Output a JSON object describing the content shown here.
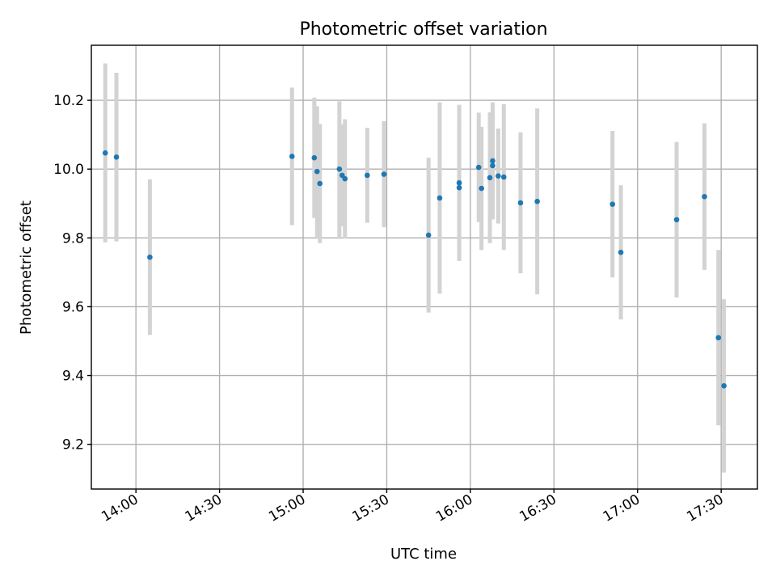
{
  "chart_data": {
    "type": "scatter",
    "title": "Photometric offset variation",
    "xlabel": "UTC time",
    "ylabel": "Photometric offset",
    "x_ticks": [
      "14:00",
      "14:30",
      "15:00",
      "15:30",
      "16:00",
      "16:30",
      "17:00",
      "17:30"
    ],
    "y_ticks": [
      "9.2",
      "9.4",
      "9.6",
      "9.8",
      "10.0",
      "10.2"
    ],
    "xlim": [
      "13:44",
      "17:43"
    ],
    "ylim": [
      9.07,
      10.36
    ],
    "grid": true,
    "series": [
      {
        "color": "#1f77b4",
        "errorbar_color": "#d3d3d3",
        "points": [
          {
            "x": "13:49",
            "y": 10.047,
            "err": 0.26
          },
          {
            "x": "13:53",
            "y": 10.035,
            "err": 0.245
          },
          {
            "x": "14:05",
            "y": 9.744,
            "err": 0.226
          },
          {
            "x": "14:56",
            "y": 10.037,
            "err": 0.2
          },
          {
            "x": "15:04",
            "y": 10.033,
            "err": 0.175
          },
          {
            "x": "15:05",
            "y": 9.993,
            "err": 0.19
          },
          {
            "x": "15:06",
            "y": 9.958,
            "err": 0.173
          },
          {
            "x": "15:13",
            "y": 10.0,
            "err": 0.197
          },
          {
            "x": "15:14",
            "y": 9.982,
            "err": 0.148
          },
          {
            "x": "15:15",
            "y": 9.972,
            "err": 0.173
          },
          {
            "x": "15:23",
            "y": 9.982,
            "err": 0.138
          },
          {
            "x": "15:29",
            "y": 9.985,
            "err": 0.154
          },
          {
            "x": "15:45",
            "y": 9.808,
            "err": 0.225
          },
          {
            "x": "15:49",
            "y": 9.916,
            "err": 0.278
          },
          {
            "x": "15:56",
            "y": 9.946,
            "err": 0.183
          },
          {
            "x": "15:56",
            "y": 9.96,
            "err": 0.227
          },
          {
            "x": "16:03",
            "y": 10.005,
            "err": 0.159
          },
          {
            "x": "16:04",
            "y": 9.944,
            "err": 0.179
          },
          {
            "x": "16:07",
            "y": 9.975,
            "err": 0.19
          },
          {
            "x": "16:08",
            "y": 10.01,
            "err": 0.155
          },
          {
            "x": "16:08",
            "y": 10.024,
            "err": 0.17
          },
          {
            "x": "16:10",
            "y": 9.98,
            "err": 0.138
          },
          {
            "x": "16:12",
            "y": 9.977,
            "err": 0.212
          },
          {
            "x": "16:18",
            "y": 9.902,
            "err": 0.205
          },
          {
            "x": "16:24",
            "y": 9.906,
            "err": 0.27
          },
          {
            "x": "16:51",
            "y": 9.898,
            "err": 0.213
          },
          {
            "x": "16:54",
            "y": 9.758,
            "err": 0.195
          },
          {
            "x": "17:14",
            "y": 9.853,
            "err": 0.226
          },
          {
            "x": "17:24",
            "y": 9.92,
            "err": 0.213
          },
          {
            "x": "17:29",
            "y": 9.51,
            "err": 0.255
          },
          {
            "x": "17:31",
            "y": 9.37,
            "err": 0.252
          }
        ]
      }
    ]
  }
}
